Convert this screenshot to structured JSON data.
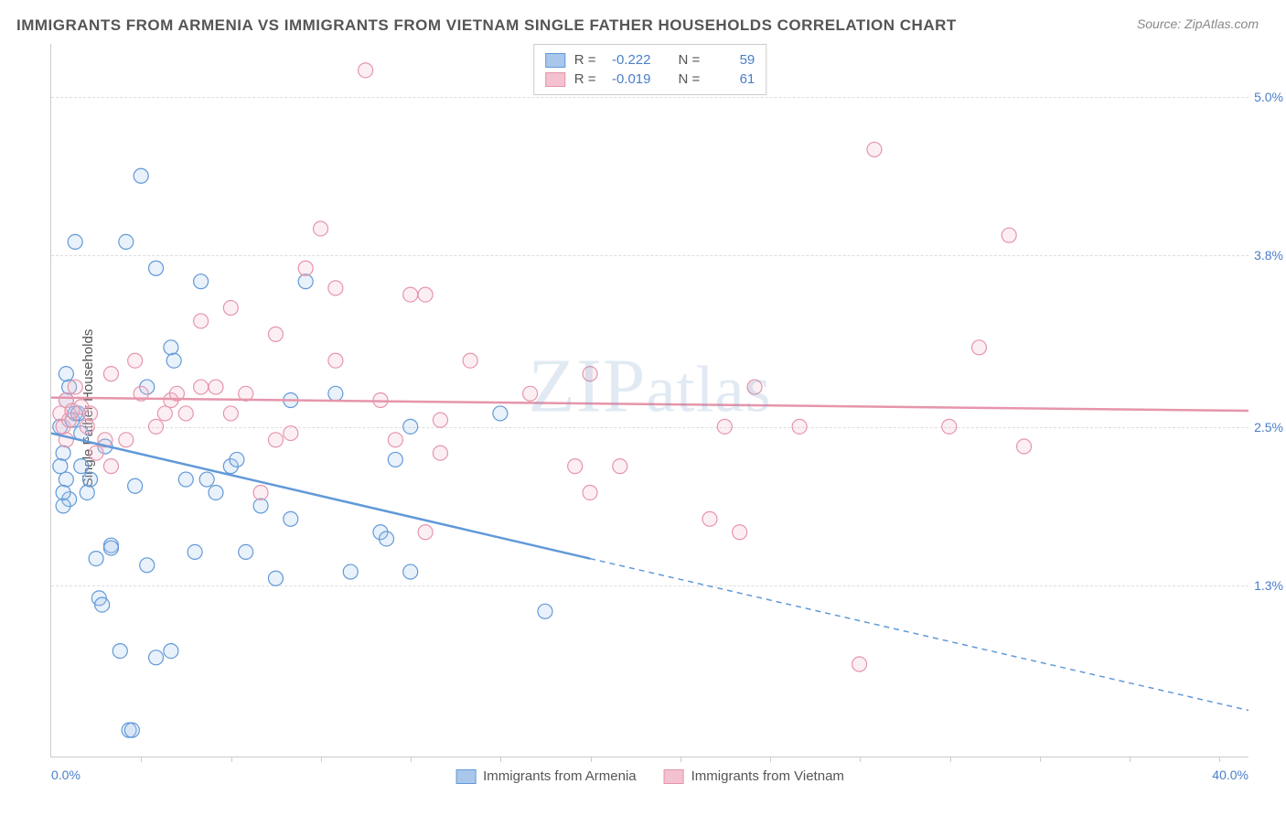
{
  "title": "IMMIGRANTS FROM ARMENIA VS IMMIGRANTS FROM VIETNAM SINGLE FATHER HOUSEHOLDS CORRELATION CHART",
  "source_label": "Source: ZipAtlas.com",
  "ylabel": "Single Father Households",
  "watermark": "ZIPatlas",
  "chart": {
    "type": "scatter",
    "xlim": [
      0.0,
      40.0
    ],
    "ylim": [
      0.0,
      5.4
    ],
    "x_tick_left": "0.0%",
    "x_tick_right": "40.0%",
    "y_ticks": [
      {
        "val": 1.3,
        "label": "1.3%"
      },
      {
        "val": 2.5,
        "label": "2.5%"
      },
      {
        "val": 3.8,
        "label": "3.8%"
      },
      {
        "val": 5.0,
        "label": "5.0%"
      }
    ],
    "x_minor_step": 3.0,
    "background_color": "#ffffff",
    "grid_color": "#dddddd",
    "marker_radius": 8,
    "marker_stroke_width": 1.2,
    "marker_fill_opacity": 0.25,
    "series": [
      {
        "name": "Immigrants from Armenia",
        "color_stroke": "#6199d8",
        "color_fill": "#a9c7ea",
        "R": "-0.222",
        "N": "59",
        "regression": {
          "x1": 0.0,
          "y1": 2.45,
          "x2_solid": 18.0,
          "y2_solid": 1.5,
          "x2_dash": 40.0,
          "y2_dash": 0.35,
          "stroke_width": 2.5
        },
        "points": [
          [
            0.3,
            2.5
          ],
          [
            0.4,
            2.3
          ],
          [
            0.5,
            2.7
          ],
          [
            0.6,
            2.8
          ],
          [
            0.7,
            2.55
          ],
          [
            0.8,
            2.6
          ],
          [
            0.5,
            2.1
          ],
          [
            0.6,
            1.95
          ],
          [
            0.4,
            1.9
          ],
          [
            1.2,
            2.0
          ],
          [
            1.3,
            2.1
          ],
          [
            1.0,
            2.2
          ],
          [
            1.5,
            1.5
          ],
          [
            1.6,
            1.2
          ],
          [
            1.7,
            1.15
          ],
          [
            2.0,
            1.6
          ],
          [
            2.0,
            1.58
          ],
          [
            2.3,
            0.8
          ],
          [
            2.6,
            0.2
          ],
          [
            2.7,
            0.2
          ],
          [
            0.8,
            3.9
          ],
          [
            2.5,
            3.9
          ],
          [
            3.0,
            4.4
          ],
          [
            3.5,
            3.7
          ],
          [
            4.0,
            3.1
          ],
          [
            4.1,
            3.0
          ],
          [
            5.0,
            3.6
          ],
          [
            3.2,
            2.8
          ],
          [
            4.5,
            2.1
          ],
          [
            5.2,
            2.1
          ],
          [
            4.8,
            1.55
          ],
          [
            3.2,
            1.45
          ],
          [
            3.5,
            0.75
          ],
          [
            4.0,
            0.8
          ],
          [
            6.0,
            2.2
          ],
          [
            6.5,
            1.55
          ],
          [
            7.0,
            1.9
          ],
          [
            7.5,
            1.35
          ],
          [
            8.0,
            1.8
          ],
          [
            8.0,
            2.7
          ],
          [
            8.5,
            3.6
          ],
          [
            9.5,
            2.75
          ],
          [
            10.0,
            1.4
          ],
          [
            11.0,
            1.7
          ],
          [
            11.2,
            1.65
          ],
          [
            12.0,
            1.4
          ],
          [
            11.5,
            2.25
          ],
          [
            12.0,
            2.5
          ],
          [
            15.0,
            2.6
          ],
          [
            16.5,
            1.1
          ],
          [
            0.5,
            2.9
          ],
          [
            1.8,
            2.35
          ],
          [
            1.0,
            2.45
          ],
          [
            0.9,
            2.6
          ],
          [
            0.3,
            2.2
          ],
          [
            0.4,
            2.0
          ],
          [
            2.8,
            2.05
          ],
          [
            5.5,
            2.0
          ],
          [
            6.2,
            2.25
          ]
        ]
      },
      {
        "name": "Immigrants from Vietnam",
        "color_stroke": "#e695ab",
        "color_fill": "#f3c1cf",
        "R": "-0.019",
        "N": "61",
        "regression": {
          "x1": 0.0,
          "y1": 2.72,
          "x2_solid": 40.0,
          "y2_solid": 2.62,
          "x2_dash": 40.0,
          "y2_dash": 2.62,
          "stroke_width": 2.5
        },
        "points": [
          [
            0.3,
            2.6
          ],
          [
            0.4,
            2.5
          ],
          [
            0.5,
            2.7
          ],
          [
            0.6,
            2.55
          ],
          [
            0.7,
            2.62
          ],
          [
            0.5,
            2.4
          ],
          [
            0.8,
            2.8
          ],
          [
            1.2,
            2.5
          ],
          [
            1.3,
            2.6
          ],
          [
            1.5,
            2.3
          ],
          [
            2.0,
            2.2
          ],
          [
            2.5,
            2.4
          ],
          [
            2.0,
            2.9
          ],
          [
            2.8,
            3.0
          ],
          [
            3.0,
            2.75
          ],
          [
            3.5,
            2.5
          ],
          [
            4.0,
            2.7
          ],
          [
            4.2,
            2.75
          ],
          [
            5.0,
            2.8
          ],
          [
            5.5,
            2.8
          ],
          [
            5.0,
            3.3
          ],
          [
            6.0,
            3.4
          ],
          [
            6.5,
            2.75
          ],
          [
            7.0,
            2.0
          ],
          [
            7.5,
            2.4
          ],
          [
            8.0,
            2.45
          ],
          [
            7.5,
            3.2
          ],
          [
            8.5,
            3.7
          ],
          [
            9.0,
            4.0
          ],
          [
            9.5,
            3.0
          ],
          [
            10.5,
            5.2
          ],
          [
            12.0,
            3.5
          ],
          [
            12.5,
            3.5
          ],
          [
            13.0,
            2.3
          ],
          [
            13.0,
            2.55
          ],
          [
            14.0,
            3.0
          ],
          [
            16.0,
            2.75
          ],
          [
            17.5,
            2.2
          ],
          [
            18.0,
            2.0
          ],
          [
            18.0,
            2.9
          ],
          [
            19.0,
            2.2
          ],
          [
            22.0,
            1.8
          ],
          [
            22.5,
            2.5
          ],
          [
            23.0,
            1.7
          ],
          [
            23.5,
            2.8
          ],
          [
            25.0,
            2.5
          ],
          [
            27.5,
            4.6
          ],
          [
            30.0,
            2.5
          ],
          [
            31.0,
            3.1
          ],
          [
            32.0,
            3.95
          ],
          [
            32.5,
            2.35
          ],
          [
            27.0,
            0.7
          ],
          [
            9.5,
            3.55
          ],
          [
            1.0,
            2.65
          ],
          [
            1.8,
            2.4
          ],
          [
            3.8,
            2.6
          ],
          [
            4.5,
            2.6
          ],
          [
            6.0,
            2.6
          ],
          [
            11.0,
            2.7
          ],
          [
            12.5,
            1.7
          ],
          [
            11.5,
            2.4
          ]
        ]
      }
    ]
  },
  "legend_top": {
    "R_label": "R =",
    "N_label": "N ="
  },
  "legend_bottom": [
    {
      "label": "Immigrants from Armenia",
      "stroke": "#6199d8",
      "fill": "#a9c7ea"
    },
    {
      "label": "Immigrants from Vietnam",
      "stroke": "#e695ab",
      "fill": "#f3c1cf"
    }
  ]
}
